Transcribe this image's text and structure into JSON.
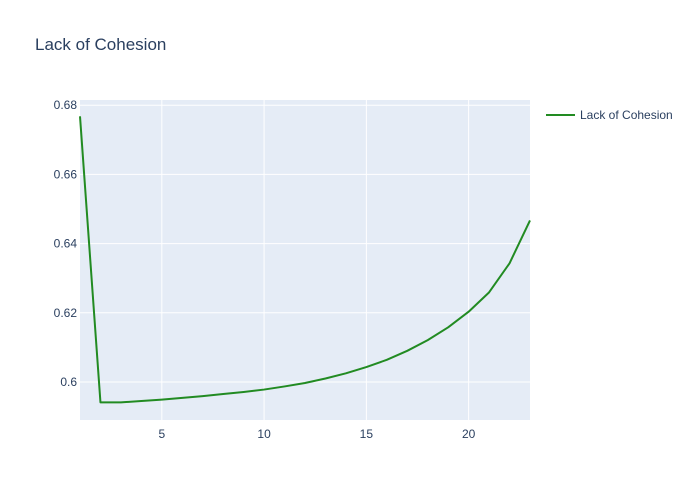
{
  "chart_data": {
    "type": "line",
    "title": "Lack of Cohesion",
    "xlabel": "",
    "ylabel": "",
    "xlim": [
      1,
      23
    ],
    "ylim": [
      0.589,
      0.6815
    ],
    "x_ticks": [
      5,
      10,
      15,
      20
    ],
    "y_ticks": [
      0.6,
      0.62,
      0.64,
      0.66,
      0.68
    ],
    "grid": true,
    "legend_position": "top-right",
    "series": [
      {
        "name": "Lack of Cohesion",
        "color": "#228b22",
        "x": [
          1,
          2,
          3,
          4,
          5,
          6,
          7,
          8,
          9,
          10,
          11,
          12,
          13,
          14,
          15,
          16,
          17,
          18,
          19,
          20,
          21,
          22,
          23
        ],
        "y": [
          0.6768,
          0.5941,
          0.5941,
          0.5945,
          0.5949,
          0.5954,
          0.5959,
          0.5965,
          0.5971,
          0.5978,
          0.5987,
          0.5997,
          0.601,
          0.6025,
          0.6043,
          0.6064,
          0.609,
          0.6121,
          0.6158,
          0.6203,
          0.6259,
          0.6343,
          0.6467
        ]
      }
    ]
  }
}
